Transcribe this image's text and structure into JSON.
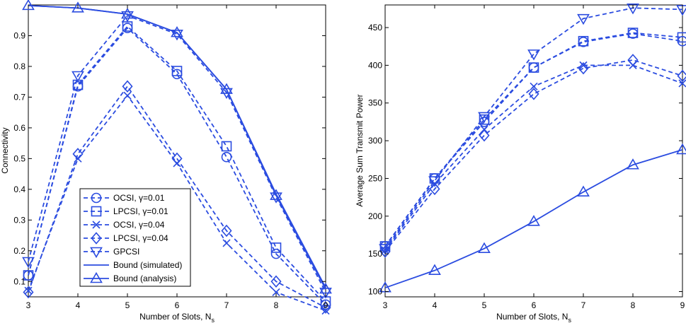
{
  "colors": {
    "series": "#2b4ce0",
    "axis": "#000000",
    "background": "#ffffff"
  },
  "chart_data": [
    {
      "type": "line",
      "title": "",
      "xlabel": "Number of Slots, N",
      "xlabel_sub": "s",
      "ylabel": "Connectivity",
      "x": [
        3,
        4,
        5,
        6,
        7,
        8,
        9
      ],
      "xlim": [
        3,
        9
      ],
      "ylim": [
        0.05,
        1.0
      ],
      "xticks": [
        "3",
        "4",
        "5",
        "6",
        "7",
        "8",
        "9"
      ],
      "yticks": [
        "0.1",
        "0.2",
        "0.3",
        "0.4",
        "0.5",
        "0.6",
        "0.7",
        "0.8",
        "0.9"
      ],
      "grid": false,
      "legend_position": "bottom-center",
      "legend": [
        {
          "label": "OCSI, γ=0.01",
          "marker": "circle",
          "dash": true
        },
        {
          "label": "LPCSI, γ=0.01",
          "marker": "square",
          "dash": true
        },
        {
          "label": "OCSI, γ=0.04",
          "marker": "x",
          "dash": true
        },
        {
          "label": "LPCSI, γ=0.04",
          "marker": "diamond",
          "dash": true
        },
        {
          "label": "GPCSI",
          "marker": "triangle-down",
          "dash": true
        },
        {
          "label": "Bound (simulated)",
          "marker": "none",
          "dash": false
        },
        {
          "label": "Bound (analysis)",
          "marker": "triangle-up",
          "dash": false
        }
      ],
      "series": [
        {
          "name": "OCSI, γ=0.01",
          "marker": "circle",
          "dash": true,
          "values": [
            0.12,
            0.735,
            0.925,
            0.775,
            0.505,
            0.19,
            0.025
          ]
        },
        {
          "name": "LPCSI, γ=0.01",
          "marker": "square",
          "dash": true,
          "values": [
            0.12,
            0.74,
            0.93,
            0.785,
            0.54,
            0.21,
            0.035
          ]
        },
        {
          "name": "OCSI, γ=0.04",
          "marker": "x",
          "dash": true,
          "values": [
            0.07,
            0.5,
            0.705,
            0.485,
            0.225,
            0.065,
            0.005
          ]
        },
        {
          "name": "LPCSI, γ=0.04",
          "marker": "diamond",
          "dash": true,
          "values": [
            0.065,
            0.515,
            0.735,
            0.5,
            0.265,
            0.1,
            0.015
          ]
        },
        {
          "name": "GPCSI",
          "marker": "triangle-down",
          "dash": true,
          "values": [
            0.165,
            0.77,
            0.965,
            0.905,
            0.715,
            0.375,
            0.065
          ]
        },
        {
          "name": "Bound (simulated)",
          "marker": "none",
          "dash": false,
          "values": [
            0.998,
            0.99,
            0.97,
            0.91,
            0.725,
            0.385,
            0.08
          ]
        },
        {
          "name": "Bound (analysis)",
          "marker": "triangle-up",
          "dash": false,
          "values": [
            0.998,
            0.99,
            0.97,
            0.91,
            0.725,
            0.38,
            0.075
          ]
        }
      ]
    },
    {
      "type": "line",
      "title": "",
      "xlabel": "Number of Slots, N",
      "xlabel_sub": "s",
      "ylabel": "Average Sum Transmit Power",
      "x": [
        3,
        4,
        5,
        6,
        7,
        8,
        9
      ],
      "xlim": [
        3,
        9
      ],
      "ylim": [
        93,
        480
      ],
      "xticks": [
        "3",
        "4",
        "5",
        "6",
        "7",
        "8",
        "9"
      ],
      "yticks": [
        "100",
        "150",
        "200",
        "250",
        "300",
        "350",
        "400",
        "450"
      ],
      "grid": false,
      "series": [
        {
          "name": "OCSI, γ=0.01",
          "marker": "circle",
          "dash": true,
          "values": [
            160,
            250,
            325,
            397,
            431,
            442,
            432
          ]
        },
        {
          "name": "LPCSI, γ=0.01",
          "marker": "square",
          "dash": true,
          "values": [
            160,
            250,
            328,
            397,
            432,
            443,
            437
          ]
        },
        {
          "name": "OCSI, γ=0.04",
          "marker": "x",
          "dash": true,
          "values": [
            155,
            243,
            315,
            372,
            400,
            400,
            376
          ]
        },
        {
          "name": "LPCSI, γ=0.04",
          "marker": "diamond",
          "dash": true,
          "values": [
            153,
            236,
            307,
            362,
            396,
            407,
            386
          ]
        },
        {
          "name": "GPCSI",
          "marker": "triangle-down",
          "dash": true,
          "values": [
            157,
            247,
            332,
            415,
            462,
            476,
            474
          ]
        },
        {
          "name": "Bound (analysis)",
          "marker": "triangle-up",
          "dash": false,
          "values": [
            105,
            128,
            157,
            193,
            232,
            268,
            288
          ]
        }
      ]
    }
  ]
}
